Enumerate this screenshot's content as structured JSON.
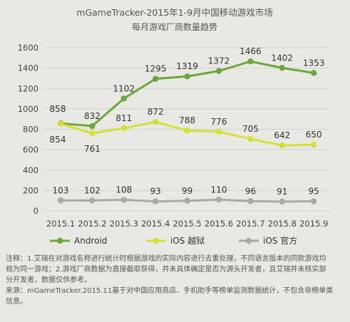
{
  "chart_data": {
    "type": "line",
    "title": "mGameTracker-2015年1-9月中国移动游戏市场",
    "subtitle": "每月游戏厂商数量趋势",
    "xlabel": "",
    "ylabel": "",
    "categories": [
      "2015.1",
      "2015.2",
      "2015.3",
      "2015.4",
      "2015.5",
      "2015.6",
      "2015.7",
      "2015.8",
      "2015.9"
    ],
    "y_ticks": [
      0,
      200,
      400,
      600,
      800,
      1000,
      1200,
      1400,
      1600
    ],
    "ylim": [
      0,
      1600
    ],
    "grid": true,
    "legend_position": "bottom",
    "series": [
      {
        "name": "Android",
        "color": "#6aa83e",
        "values": [
          858,
          832,
          1102,
          1295,
          1319,
          1372,
          1466,
          1402,
          1353
        ]
      },
      {
        "name": "iOS 越狱",
        "color": "#d4e03a",
        "values": [
          854,
          761,
          811,
          872,
          788,
          776,
          705,
          642,
          650
        ]
      },
      {
        "name": "iOS 官方",
        "color": "#a9a9a9",
        "values": [
          103,
          102,
          108,
          93,
          99,
          110,
          96,
          91,
          95
        ]
      }
    ]
  },
  "notes": {
    "line1": "注释：1.艾瑞在对游戏名称进行统计时根据游戏的实际内容进行去重处理，不同语言版本的同款游戏均",
    "line2": "视为同一游戏；2.游戏厂商数据为直接截取获得，并未具体确定是否为源头开发者，且艾瑞并未核实部",
    "line3": "分开发者，数据仅供参考。",
    "line4": "来源：mGameTracker.2015.11基于对中国应用商店、手机助手等榜单监测数据统计，不包含非榜单类",
    "line5": "信息。"
  }
}
